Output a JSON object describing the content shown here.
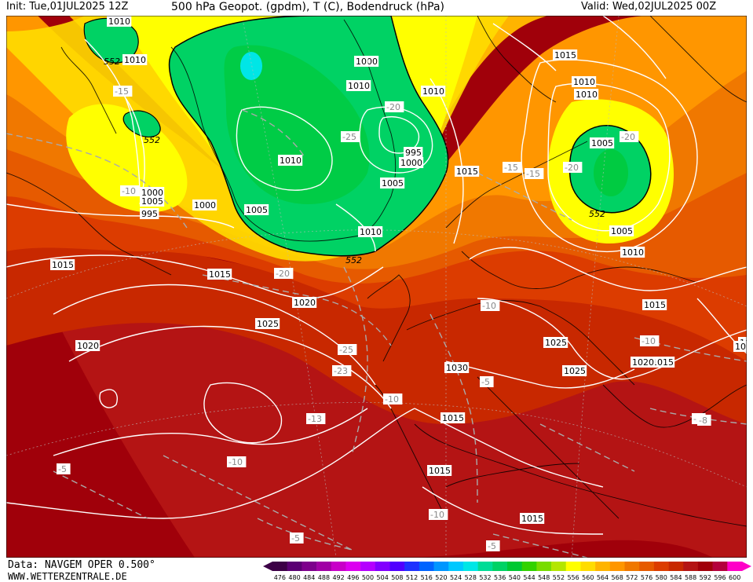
{
  "header": {
    "init": "Init: Tue,01JUL2025 12Z",
    "title": "500 hPa Geopot. (gpdm), T (C), Bodendruck (hPa)",
    "valid": "Valid: Wed,02JUL2025 00Z"
  },
  "footer": {
    "data_source": "Data: NAVGEM OPER 0.500°",
    "website": "WWW.WETTERZENTRALE.DE"
  },
  "colorbar": {
    "ticks": [
      "476",
      "480",
      "484",
      "488",
      "492",
      "496",
      "500",
      "504",
      "508",
      "512",
      "516",
      "520",
      "524",
      "528",
      "532",
      "536",
      "540",
      "544",
      "548",
      "552",
      "556",
      "560",
      "564",
      "568",
      "572",
      "576",
      "580",
      "584",
      "588",
      "592",
      "596",
      "600"
    ],
    "colors": [
      "#3c0046",
      "#5a0073",
      "#7d008c",
      "#a000a5",
      "#c800c8",
      "#dc00f0",
      "#b400ff",
      "#8200ff",
      "#5000ff",
      "#1e32ff",
      "#0064ff",
      "#0096ff",
      "#00c8ff",
      "#00e6e6",
      "#00dc96",
      "#00d264",
      "#00c832",
      "#32d200",
      "#78dc00",
      "#b4e600",
      "#ffff00",
      "#ffdc00",
      "#ffb400",
      "#ff9600",
      "#f07800",
      "#e65a00",
      "#dc3c00",
      "#c82800",
      "#b41414",
      "#a0000a",
      "#b4003c",
      "#ff00c8"
    ]
  },
  "map_labels": {
    "pressure": [
      "1005",
      "1000",
      "1000",
      "1005",
      "1010",
      "995",
      "1000",
      "1010",
      "1015",
      "1005",
      "1010",
      "1015",
      "1010",
      "1005",
      "1000",
      "1005",
      "995",
      "1000",
      "1005",
      "1010",
      "1005",
      "1010",
      "1015",
      "1015",
      "1020",
      "1025",
      "1020",
      "1015",
      "1030",
      "1025",
      "1025",
      "1015",
      "1015",
      "1015",
      "1020",
      "1015",
      "1010",
      "1015",
      "1010",
      "1010",
      "10",
      "1010"
    ],
    "temperature": [
      "-15",
      "-20",
      "-25",
      "-15",
      "-15",
      "-20",
      "-20",
      "-10",
      "-20",
      "-10",
      "-25",
      "-23",
      "-10",
      "-13",
      "-10",
      "-5",
      "-10",
      "-5",
      "-10",
      "-5",
      "-5",
      "-5",
      "-8"
    ],
    "geopotential": [
      "552",
      "552",
      "552",
      "552"
    ]
  }
}
